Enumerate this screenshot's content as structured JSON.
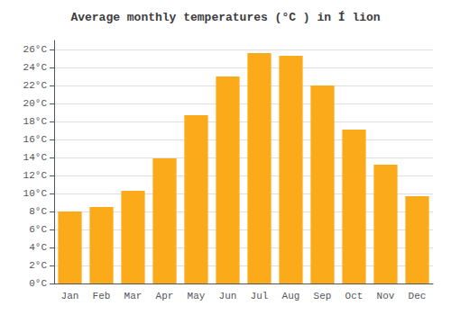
{
  "chart_data": {
    "type": "bar",
    "title": "Average monthly temperatures (°C ) in Í lion",
    "categories": [
      "Jan",
      "Feb",
      "Mar",
      "Apr",
      "May",
      "Jun",
      "Jul",
      "Aug",
      "Sep",
      "Oct",
      "Nov",
      "Dec"
    ],
    "values": [
      8.0,
      8.5,
      10.3,
      13.9,
      18.7,
      23.0,
      25.6,
      25.3,
      22.0,
      17.1,
      13.2,
      9.7
    ],
    "color": "#FBAA19",
    "ylim": [
      0,
      27
    ],
    "yticks": [
      {
        "value": 0,
        "label": "0°C"
      },
      {
        "value": 2,
        "label": "2°C"
      },
      {
        "value": 4,
        "label": "4°C"
      },
      {
        "value": 6,
        "label": "6°C"
      },
      {
        "value": 8,
        "label": "8°C"
      },
      {
        "value": 10,
        "label": "10°C"
      },
      {
        "value": 12,
        "label": "12°C"
      },
      {
        "value": 14,
        "label": "14°C"
      },
      {
        "value": 16,
        "label": "16°C"
      },
      {
        "value": 18,
        "label": "18°C"
      },
      {
        "value": 20,
        "label": "20°C"
      },
      {
        "value": 22,
        "label": "22°C"
      },
      {
        "value": 24,
        "label": "24°C"
      },
      {
        "value": 26,
        "label": "26°C"
      }
    ],
    "grid": true
  }
}
